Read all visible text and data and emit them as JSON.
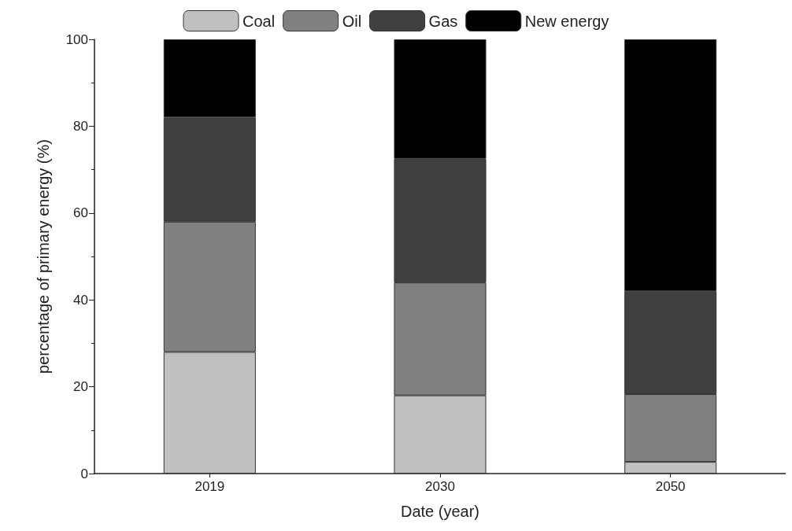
{
  "chart_data": {
    "type": "bar",
    "stacked": true,
    "categories": [
      "2019",
      "2030",
      "2050"
    ],
    "series": [
      {
        "name": "Coal",
        "color": "#c0c0c0",
        "values": [
          28,
          18,
          2.7
        ]
      },
      {
        "name": "Oil",
        "color": "#808080",
        "values": [
          30,
          26,
          15.6
        ]
      },
      {
        "name": "Gas",
        "color": "#404040",
        "values": [
          24,
          28.5,
          23.7
        ]
      },
      {
        "name": "New energy",
        "color": "#000000",
        "values": [
          18,
          27.5,
          58
        ]
      }
    ],
    "xlabel": "Date (year)",
    "ylabel": "percentage of primary energy (%)",
    "ylim": [
      0,
      100
    ],
    "yticks": [
      0,
      20,
      40,
      60,
      80,
      100
    ],
    "legend": "top",
    "grid": false
  }
}
